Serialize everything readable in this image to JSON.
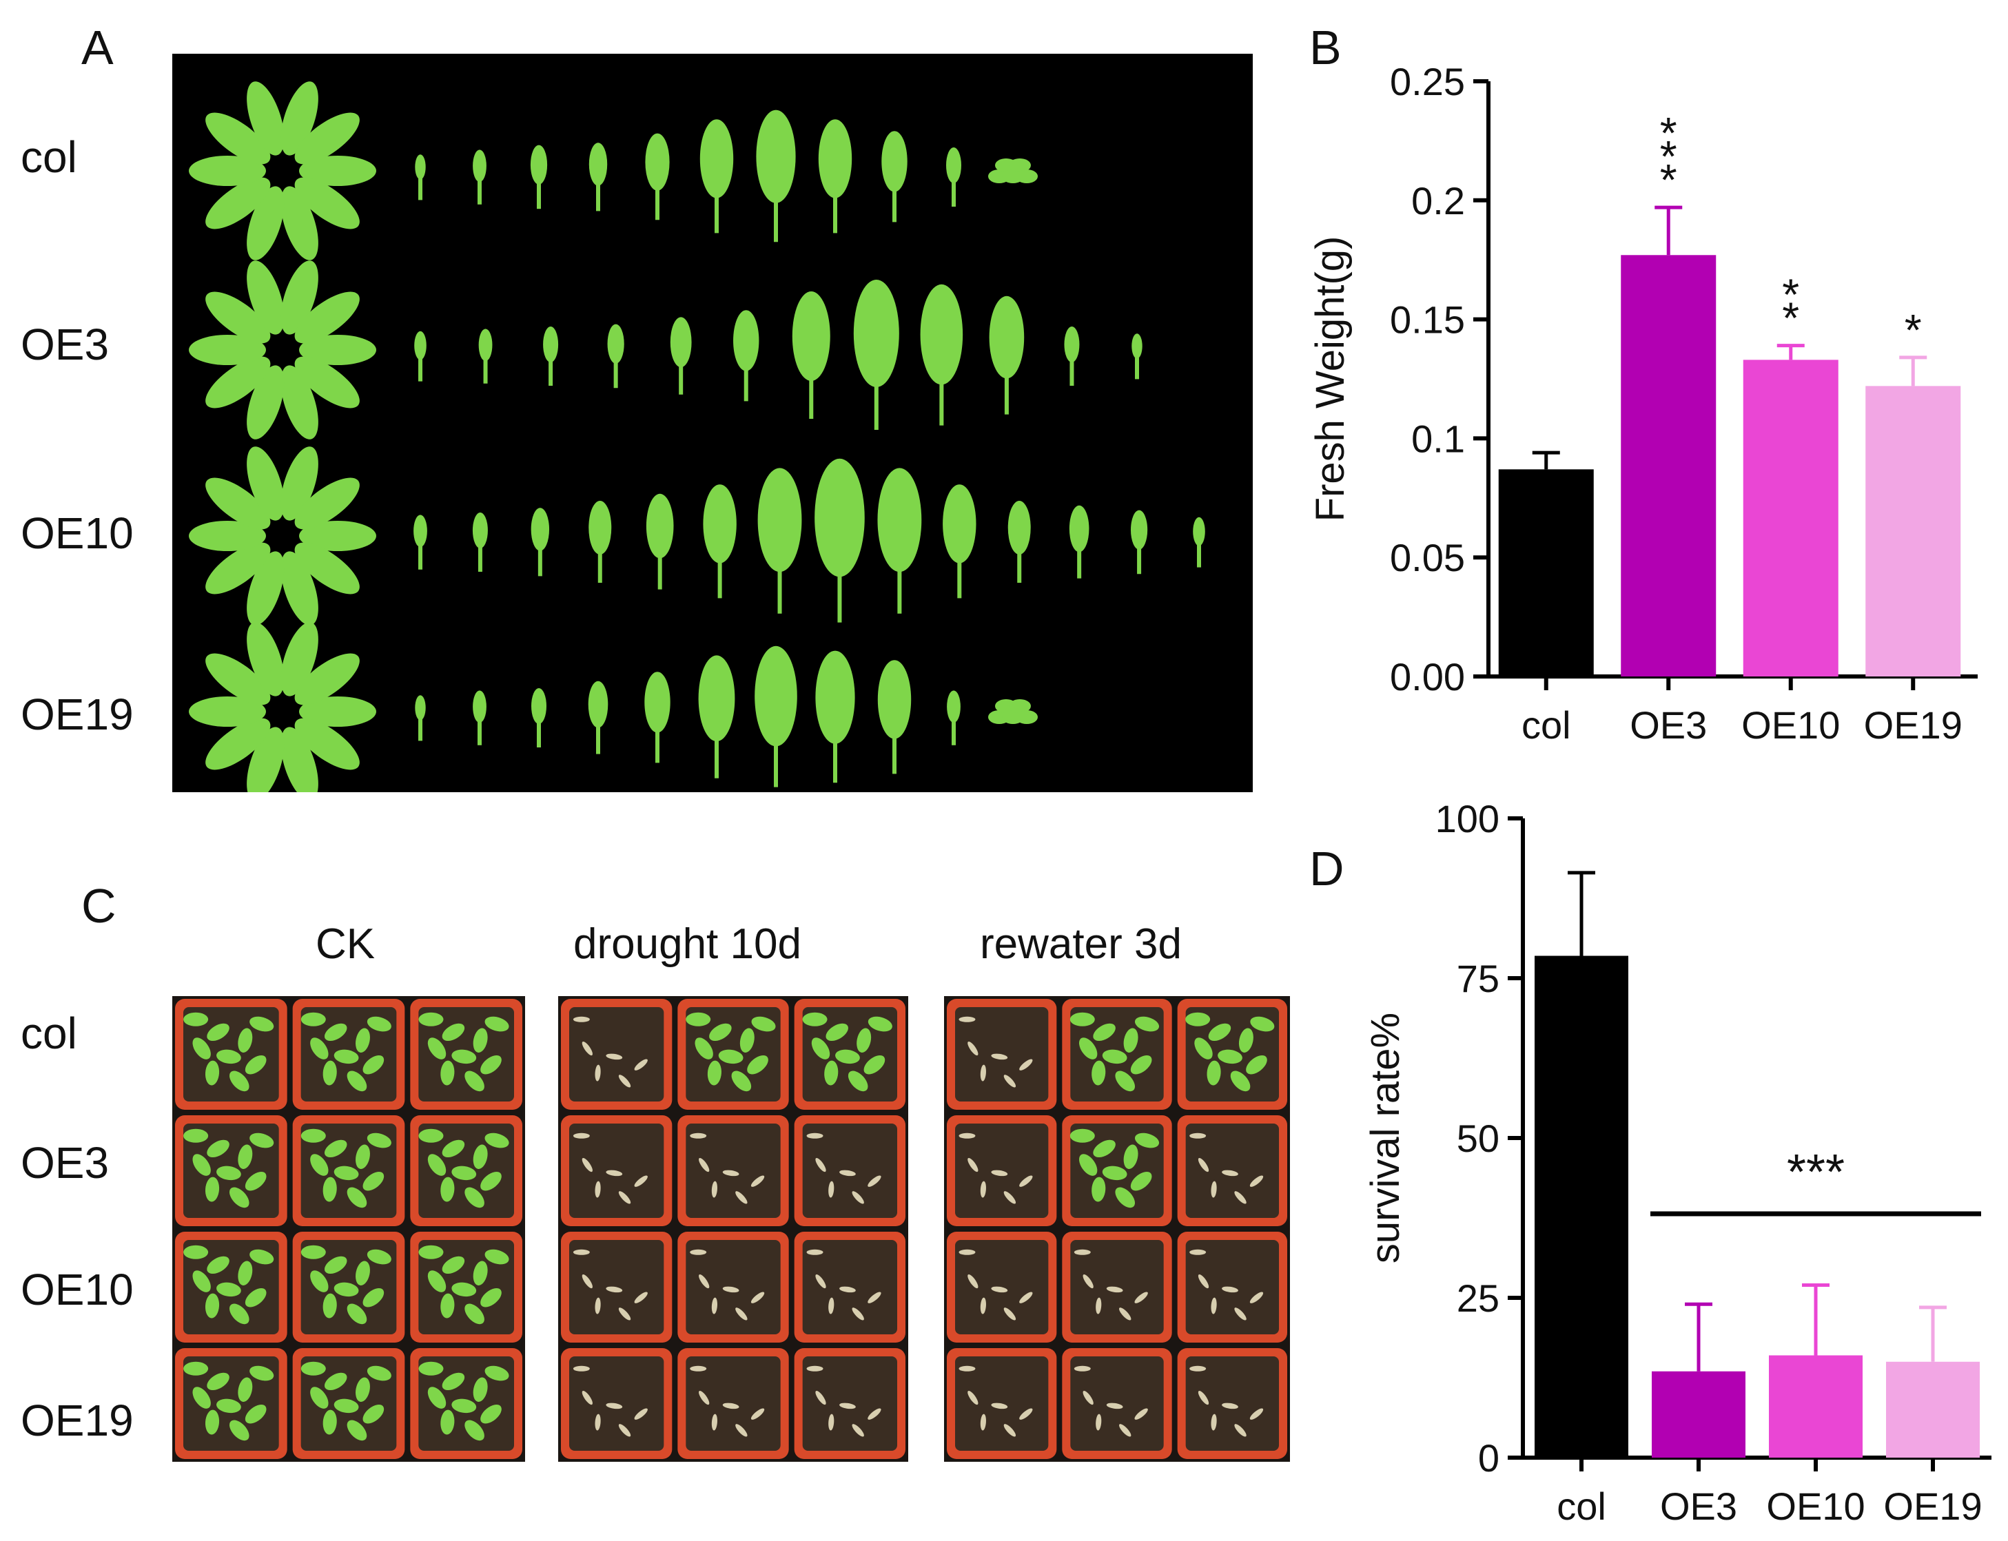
{
  "panels": {
    "a": {
      "letter": "A",
      "rows": [
        "col",
        "OE3",
        "OE10",
        "OE19"
      ]
    },
    "b": {
      "letter": "B"
    },
    "c": {
      "letter": "C",
      "conditions": [
        "CK",
        "drought 10d",
        "rewater 3d"
      ],
      "rows": [
        "col",
        "OE3",
        "OE10",
        "OE19"
      ]
    },
    "d": {
      "letter": "D"
    }
  },
  "colors": {
    "col": "#000000",
    "OE3": "#b200b2",
    "OE10": "#ea46d4",
    "OE19": "#f2a6e4",
    "photo_bg": "#000000",
    "leaf": "#7fd64a",
    "soil": "#3a2d22",
    "tray": "#d94a2a"
  },
  "chart_data": [
    {
      "panel": "B",
      "type": "bar",
      "categories": [
        "col",
        "OE3",
        "OE10",
        "OE19"
      ],
      "values": [
        0.087,
        0.177,
        0.133,
        0.122
      ],
      "errors": [
        0.007,
        0.02,
        0.006,
        0.012
      ],
      "significance": [
        "",
        "***",
        "**",
        "*"
      ],
      "ylabel": "Fresh Weight(g)",
      "ylim": [
        0,
        0.25
      ],
      "yticks": [
        "0.00",
        "0.05",
        "0.1",
        "0.15",
        "0.2",
        "0.25"
      ],
      "grid": false
    },
    {
      "panel": "D",
      "type": "bar",
      "categories": [
        "col",
        "OE3",
        "OE10",
        "OE19"
      ],
      "values": [
        78.5,
        13.5,
        16,
        15
      ],
      "errors": [
        13,
        10.5,
        11,
        8.5
      ],
      "significance_group": "***",
      "ylabel": "survival rate%",
      "ylim": [
        0,
        100
      ],
      "yticks": [
        "0",
        "25",
        "50",
        "75",
        "100"
      ],
      "grid": false
    }
  ]
}
